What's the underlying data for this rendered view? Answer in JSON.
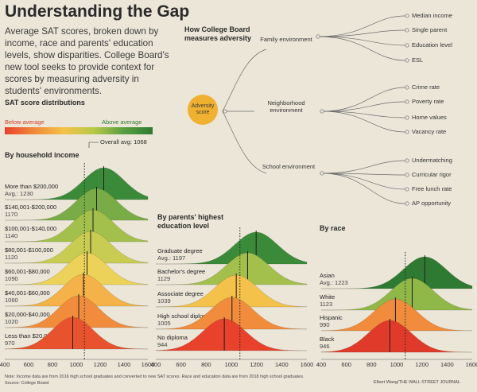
{
  "header": {
    "title": "Understanding the Gap",
    "intro": "Average SAT scores, broken down by income, race and parents' education levels, show disparities. College Board's new tool seeks to provide context for scores by measuring adversity in students' environments."
  },
  "legend": {
    "title": "SAT score distributions",
    "below": "Below average",
    "above": "Above average",
    "overall_avg": "Overall avg: 1068",
    "colors": [
      "#e8412c",
      "#f08a3a",
      "#f4c24a",
      "#b8c848",
      "#5aa040",
      "#2f7a32"
    ]
  },
  "adversity": {
    "how_title": "How College Board measures adversity",
    "score_label": "Adversity score",
    "groups": [
      {
        "label": "Family environment",
        "leaves": [
          "Median income",
          "Single parent",
          "Education level",
          "ESL"
        ]
      },
      {
        "label": "Neighborhood environment",
        "leaves": [
          "Crime rate",
          "Poverty rate",
          "Home values",
          "Vacancy rate"
        ]
      },
      {
        "label": "School environment",
        "leaves": [
          "Undermatching",
          "Curricular rigor",
          "Free lunch rate",
          "AP opportunity"
        ]
      }
    ]
  },
  "chart_data": [
    {
      "type": "area",
      "title": "By household income",
      "overall_avg": 1068,
      "xlim": [
        400,
        1600
      ],
      "xticks": [
        "400",
        "600",
        "800",
        "1000",
        "1200",
        "1400",
        "1600"
      ],
      "series": [
        {
          "name": "More than $200,000",
          "avg_label": "Avg.: 1230",
          "mean": 1230,
          "color": "#3b8a3a"
        },
        {
          "name": "$140,001-$200,000",
          "avg_label": "1170",
          "mean": 1170,
          "color": "#79ac46"
        },
        {
          "name": "$100,001-$140,000",
          "avg_label": "1140",
          "mean": 1140,
          "color": "#a3bf4c"
        },
        {
          "name": "$80,001-$100,000",
          "avg_label": "1120",
          "mean": 1120,
          "color": "#c9cc52"
        },
        {
          "name": "$60,001-$80,000",
          "avg_label": "1090",
          "mean": 1090,
          "color": "#ecd258"
        },
        {
          "name": "$40,001-$60,000",
          "avg_label": "1060",
          "mean": 1060,
          "color": "#f4b248"
        },
        {
          "name": "$20,000-$40,000",
          "avg_label": "1020",
          "mean": 1020,
          "color": "#f08c3c"
        },
        {
          "name": "Less than $20,000",
          "avg_label": "970",
          "mean": 970,
          "color": "#e8532e"
        }
      ]
    },
    {
      "type": "area",
      "title": "By parents' highest education level",
      "overall_avg": 1068,
      "xlim": [
        400,
        1600
      ],
      "xticks": [
        "400",
        "600",
        "800",
        "1000",
        "1200",
        "1400",
        "1600"
      ],
      "series": [
        {
          "name": "Graduate degree",
          "avg_label": "Avg.: 1197",
          "mean": 1197,
          "color": "#3b8a3a"
        },
        {
          "name": "Bachelor's degree",
          "avg_label": "1129",
          "mean": 1129,
          "color": "#a3bf4c"
        },
        {
          "name": "Associate degree",
          "avg_label": "1039",
          "mean": 1039,
          "color": "#f4c24a"
        },
        {
          "name": "High school diploma",
          "avg_label": "1005",
          "mean": 1005,
          "color": "#f08c3c"
        },
        {
          "name": "No diploma",
          "avg_label": "944",
          "mean": 944,
          "color": "#e8412c"
        }
      ]
    },
    {
      "type": "area",
      "title": "By race",
      "overall_avg": 1068,
      "xlim": [
        400,
        1600
      ],
      "xticks": [
        "400",
        "600",
        "800",
        "1000",
        "1200",
        "1400",
        "1600"
      ],
      "series": [
        {
          "name": "Asian",
          "avg_label": "Avg.: 1223",
          "mean": 1223,
          "color": "#2f7a32"
        },
        {
          "name": "White",
          "avg_label": "1123",
          "mean": 1123,
          "color": "#8fb848"
        },
        {
          "name": "Hispanic",
          "avg_label": "990",
          "mean": 990,
          "color": "#f08c3c"
        },
        {
          "name": "Black",
          "avg_label": "946",
          "mean": 946,
          "color": "#e03a2a"
        }
      ]
    }
  ],
  "footer": {
    "note": "Note: Income data are from 2016 high school graduates and converted to new SAT scores. Race and education data are from 2018 high school graduates.",
    "source": "Source: College Board",
    "credit": "Elbert Wang/THE WALL STREET JOURNAL"
  }
}
